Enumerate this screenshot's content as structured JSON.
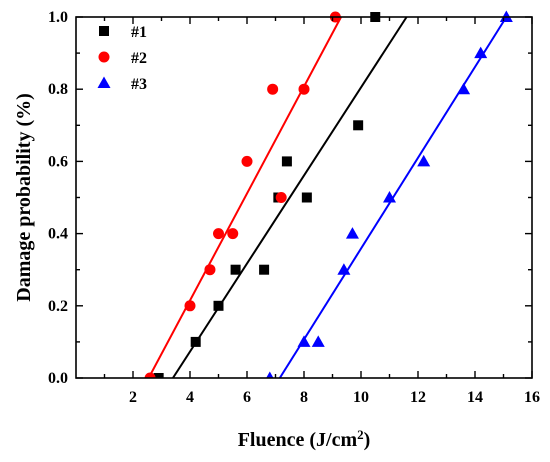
{
  "chart_data": {
    "type": "scatter",
    "xlabel": "Fluence (J/cm",
    "xlabel_sup": "2",
    "xlabel_end": ")",
    "ylabel": "Damage probability (%)",
    "xlim": [
      0,
      16
    ],
    "ylim": [
      0.0,
      1.0
    ],
    "x_ticks": [
      "2",
      "4",
      "6",
      "8",
      "10",
      "12",
      "14",
      "16"
    ],
    "y_ticks": [
      "0.0",
      "0.2",
      "0.4",
      "0.6",
      "0.8",
      "1.0"
    ],
    "grid": false,
    "legend_position": "top-left",
    "series": [
      {
        "name": "#1",
        "marker": "square",
        "color": "#000000",
        "points": [
          [
            2.9,
            0.0
          ],
          [
            4.2,
            0.1
          ],
          [
            5.0,
            0.2
          ],
          [
            5.6,
            0.3
          ],
          [
            6.6,
            0.3
          ],
          [
            7.1,
            0.5
          ],
          [
            7.4,
            0.6
          ],
          [
            8.1,
            0.5
          ],
          [
            9.9,
            0.7
          ],
          [
            10.5,
            1.0
          ]
        ],
        "fit": [
          [
            3.4,
            0.0
          ],
          [
            11.6,
            1.0
          ]
        ]
      },
      {
        "name": "#2",
        "marker": "circle",
        "color": "#ff0000",
        "points": [
          [
            2.6,
            0.0
          ],
          [
            4.0,
            0.2
          ],
          [
            4.7,
            0.3
          ],
          [
            5.0,
            0.4
          ],
          [
            5.5,
            0.4
          ],
          [
            6.0,
            0.6
          ],
          [
            6.9,
            0.8
          ],
          [
            7.2,
            0.5
          ],
          [
            8.0,
            0.8
          ],
          [
            9.1,
            1.0
          ]
        ],
        "fit": [
          [
            2.55,
            0.0
          ],
          [
            9.3,
            1.0
          ]
        ]
      },
      {
        "name": "#3",
        "marker": "triangle",
        "color": "#0000ff",
        "points": [
          [
            6.8,
            0.0
          ],
          [
            8.0,
            0.1
          ],
          [
            8.5,
            0.1
          ],
          [
            9.4,
            0.3
          ],
          [
            9.7,
            0.4
          ],
          [
            11.0,
            0.5
          ],
          [
            12.2,
            0.6
          ],
          [
            13.6,
            0.8
          ],
          [
            14.2,
            0.9
          ],
          [
            15.1,
            1.0
          ]
        ],
        "fit": [
          [
            7.15,
            0.0
          ],
          [
            15.1,
            1.0
          ]
        ]
      }
    ]
  }
}
